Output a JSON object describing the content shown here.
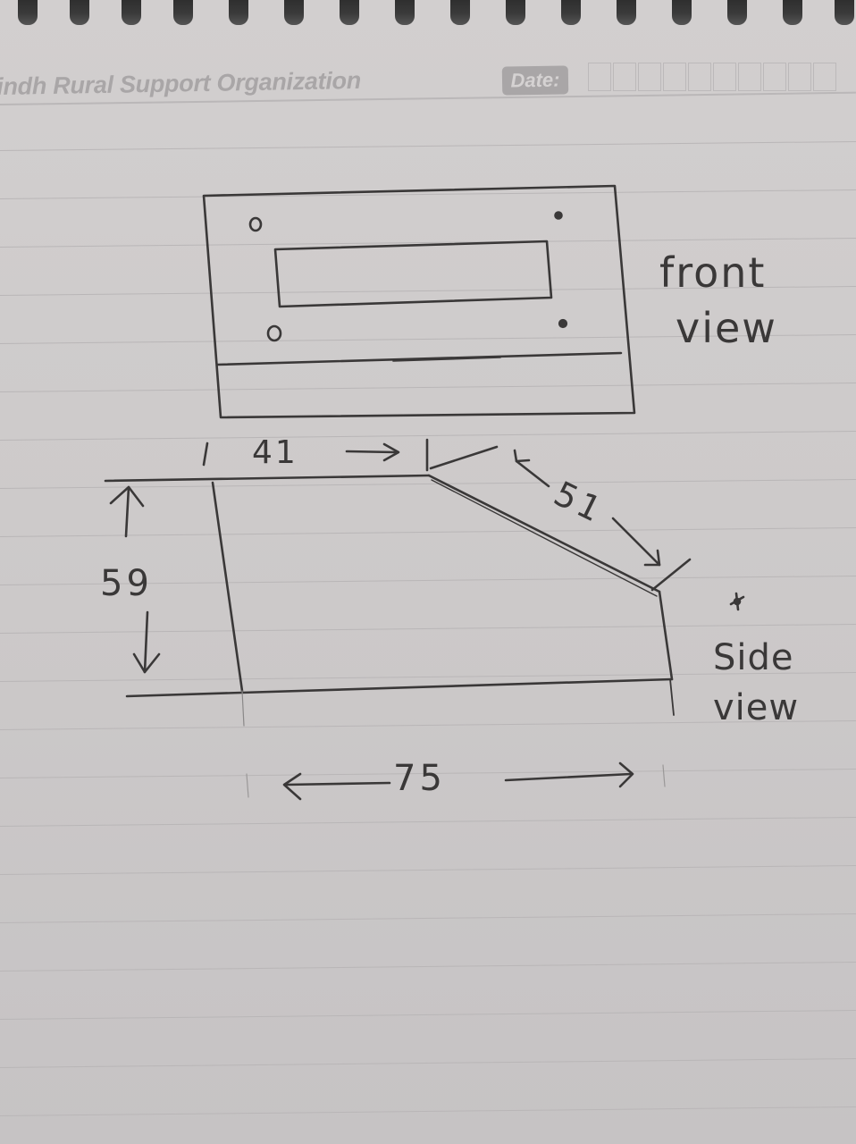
{
  "header": {
    "org_name": "indh Rural Support Organization",
    "date_label": "Date:"
  },
  "sketch": {
    "front_view_label": [
      "front",
      "view"
    ],
    "side_view_label": [
      "Side",
      "view"
    ],
    "dimensions": {
      "top": "41",
      "height": "59",
      "slope": "51",
      "width": "75"
    }
  },
  "colors": {
    "paper": "#cdcaca",
    "ink": "#3a3838",
    "print": "#a9a6a7"
  }
}
